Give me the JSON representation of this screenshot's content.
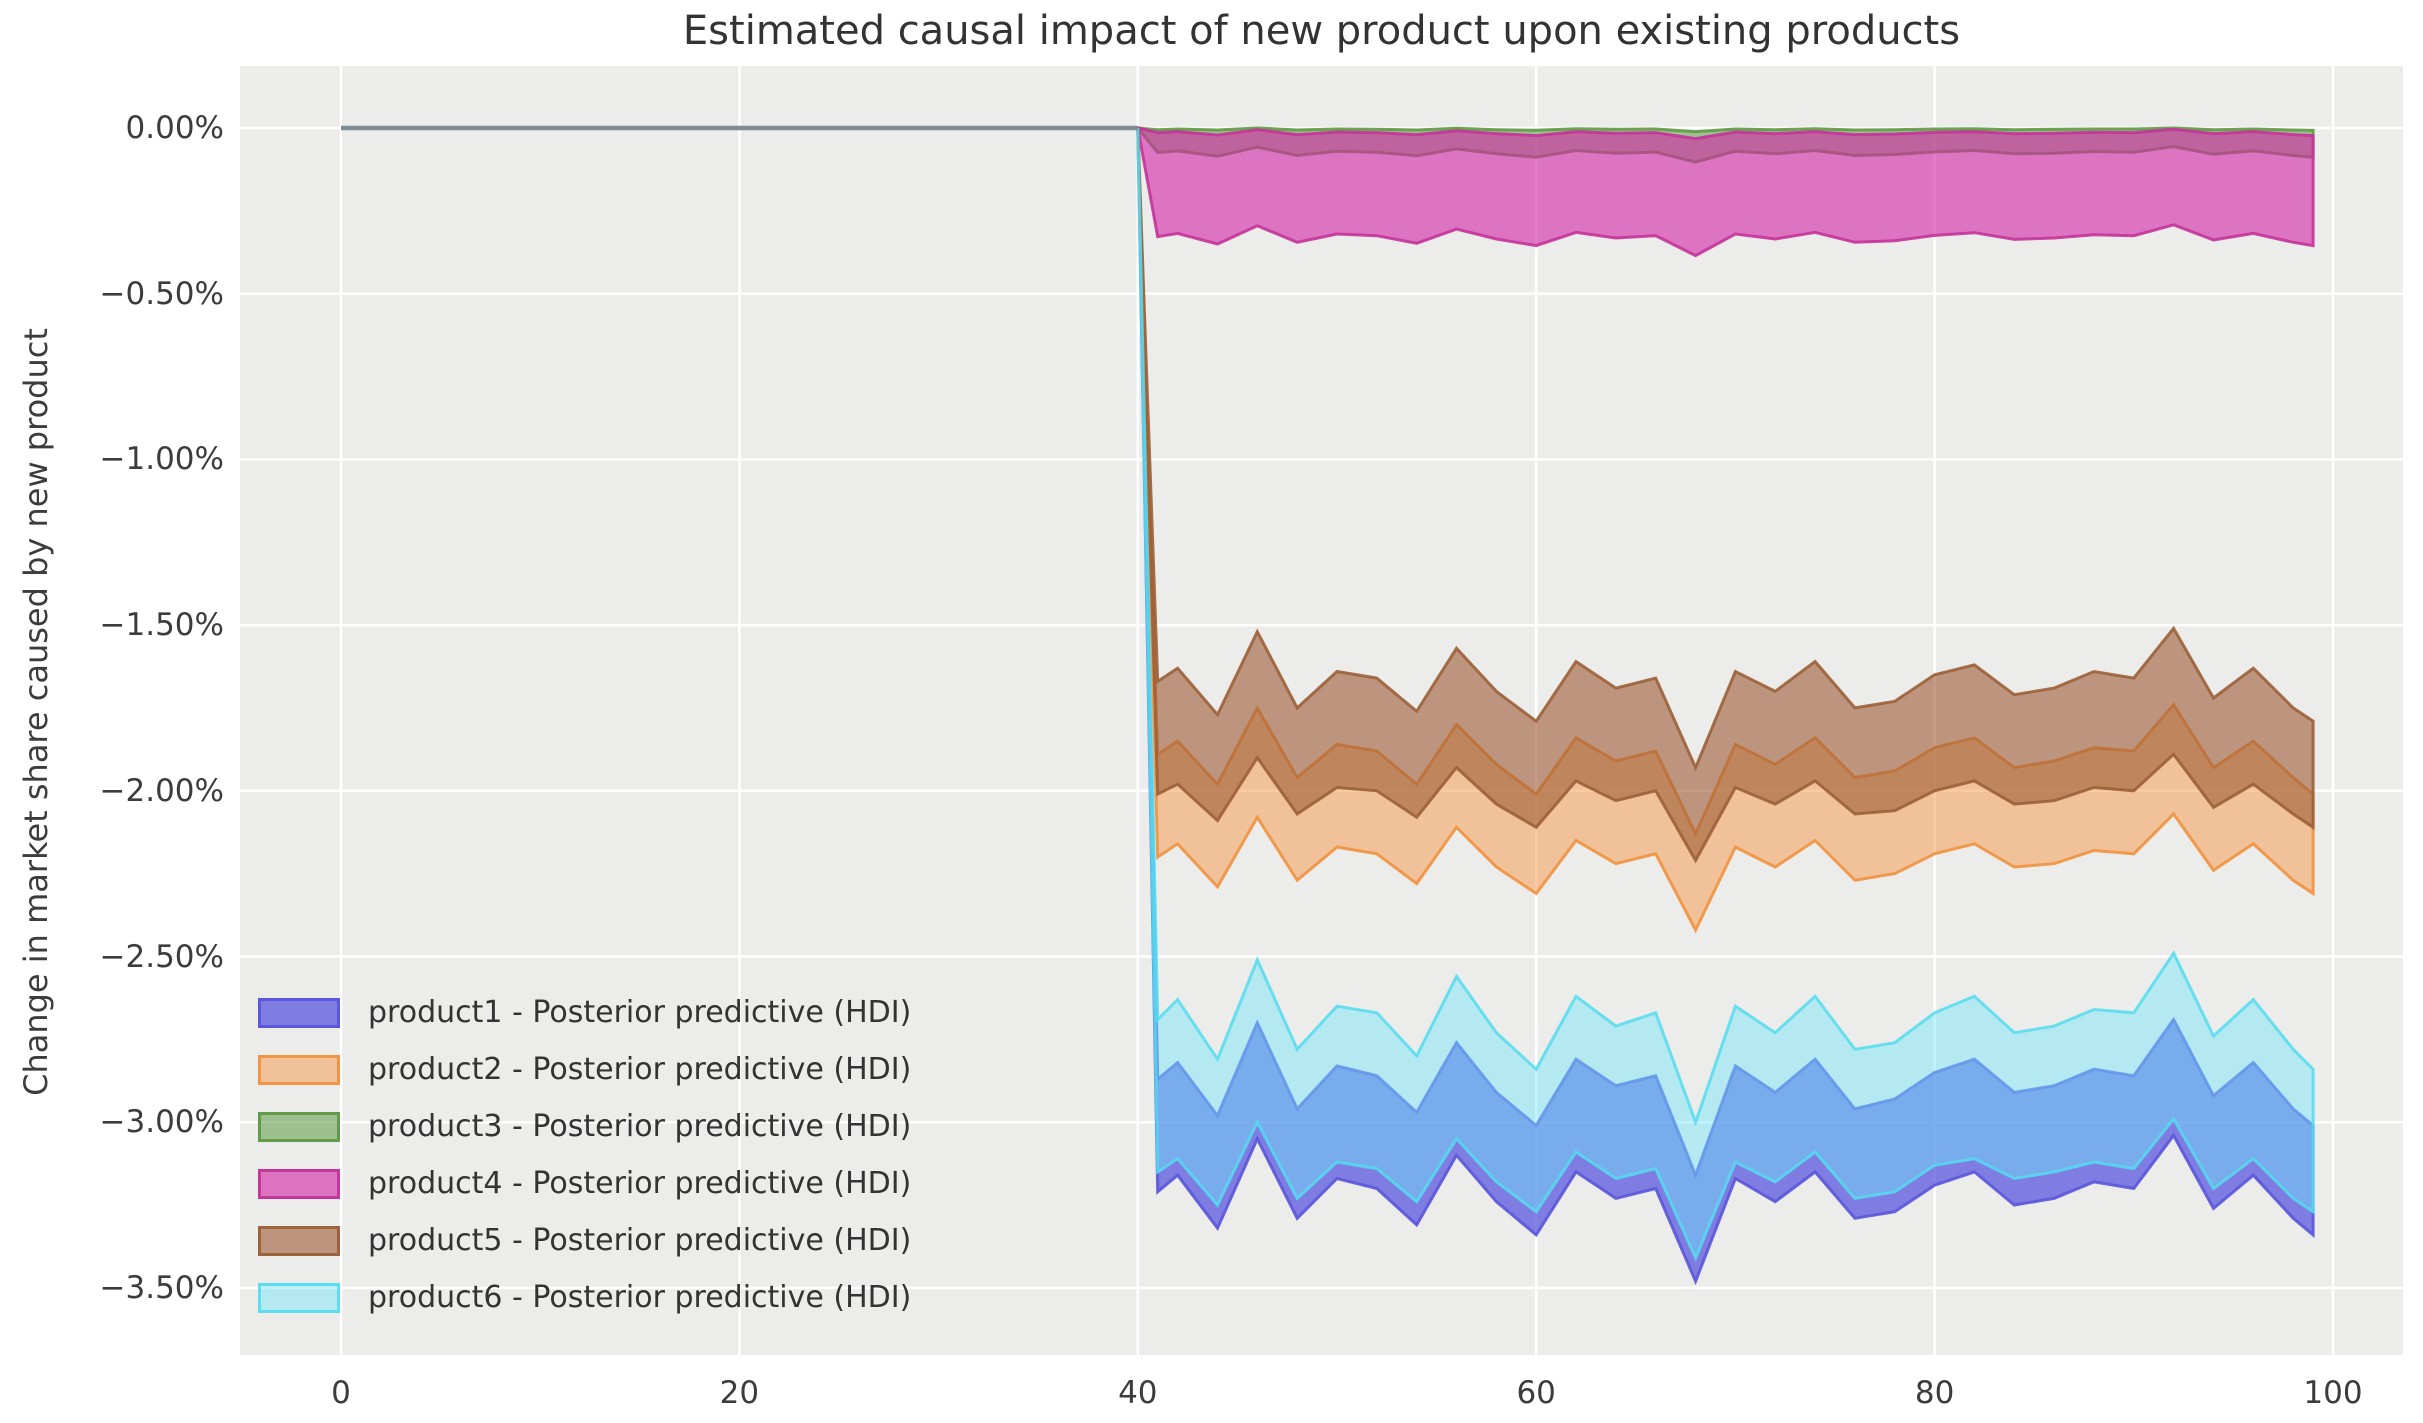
{
  "chart_data": {
    "type": "area",
    "title": "Estimated causal impact of new product upon existing products",
    "ylabel": "Change in market share caused by new product",
    "xlabel": "",
    "grid": true,
    "axes_background": "#ECECEB",
    "gridline_color": "#FFFFFF",
    "tick_color": "#3c3c3c",
    "xlim": [
      -5.1,
      103.6
    ],
    "ylim": [
      -3.7,
      0.187
    ],
    "x_ticks": [
      0,
      20,
      40,
      60,
      80,
      100
    ],
    "x_tick_labels": [
      "0",
      "20",
      "40",
      "60",
      "80",
      "100"
    ],
    "y_ticks": [
      0,
      -0.5,
      -1.0,
      -1.5,
      -2.0,
      -2.5,
      -3.0,
      -3.5
    ],
    "y_tick_labels": [
      "0.00%",
      "−0.50%",
      "−1.00%",
      "−1.50%",
      "−2.00%",
      "−2.50%",
      "−3.00%",
      "−3.50%"
    ],
    "treatment_x": 40,
    "pre_period_line": {
      "x": [
        0,
        40
      ],
      "y": [
        0,
        0
      ],
      "color": "#7D8D95",
      "width": 4.5
    },
    "legend_position": "lower-left",
    "x": [
      40,
      41,
      42,
      44,
      46,
      48,
      50,
      52,
      54,
      56,
      58,
      60,
      62,
      64,
      66,
      68,
      70,
      72,
      74,
      76,
      78,
      80,
      82,
      84,
      86,
      88,
      90,
      92,
      94,
      96,
      98,
      99
    ],
    "series": [
      {
        "name": "product1",
        "label": "product1 - Posterior predictive (HDI)",
        "fill": "#5B58DD",
        "stroke": "#5A55DC",
        "fill_opacity": 0.75,
        "stroke_opacity": 0.9,
        "hi": [
          0,
          -2.87,
          -2.82,
          -2.98,
          -2.7,
          -2.96,
          -2.83,
          -2.86,
          -2.97,
          -2.76,
          -2.91,
          -3.01,
          -2.81,
          -2.89,
          -2.86,
          -3.16,
          -2.83,
          -2.91,
          -2.81,
          -2.96,
          -2.93,
          -2.85,
          -2.81,
          -2.91,
          -2.89,
          -2.84,
          -2.86,
          -2.69,
          -2.92,
          -2.82,
          -2.96,
          -3.01
        ],
        "lo": [
          0,
          -3.21,
          -3.16,
          -3.32,
          -3.05,
          -3.29,
          -3.17,
          -3.2,
          -3.31,
          -3.1,
          -3.24,
          -3.34,
          -3.15,
          -3.23,
          -3.2,
          -3.48,
          -3.17,
          -3.24,
          -3.15,
          -3.29,
          -3.27,
          -3.19,
          -3.15,
          -3.25,
          -3.23,
          -3.18,
          -3.2,
          -3.04,
          -3.26,
          -3.16,
          -3.29,
          -3.34
        ]
      },
      {
        "name": "product2",
        "label": "product2 - Posterior predictive (HDI)",
        "fill": "#F5A155",
        "stroke": "#F0923F",
        "fill_opacity": 0.55,
        "stroke_opacity": 0.9,
        "hi": [
          0,
          -1.89,
          -1.85,
          -1.98,
          -1.75,
          -1.96,
          -1.86,
          -1.88,
          -1.98,
          -1.8,
          -1.92,
          -2.01,
          -1.84,
          -1.91,
          -1.88,
          -2.13,
          -1.86,
          -1.92,
          -1.84,
          -1.96,
          -1.94,
          -1.87,
          -1.84,
          -1.93,
          -1.91,
          -1.87,
          -1.88,
          -1.74,
          -1.93,
          -1.85,
          -1.96,
          -2.01
        ],
        "lo": [
          0,
          -2.2,
          -2.16,
          -2.29,
          -2.08,
          -2.27,
          -2.17,
          -2.19,
          -2.28,
          -2.11,
          -2.23,
          -2.31,
          -2.15,
          -2.22,
          -2.19,
          -2.42,
          -2.17,
          -2.23,
          -2.15,
          -2.27,
          -2.25,
          -2.19,
          -2.16,
          -2.23,
          -2.22,
          -2.18,
          -2.19,
          -2.07,
          -2.24,
          -2.16,
          -2.27,
          -2.31
        ]
      },
      {
        "name": "product3",
        "label": "product3 - Posterior predictive (HDI)",
        "fill": "#6BA353",
        "stroke": "#5F9A44",
        "fill_opacity": 0.6,
        "stroke_opacity": 0.9,
        "hi": [
          0,
          -0.005,
          -0.003,
          -0.006,
          0.0,
          -0.006,
          -0.003,
          -0.004,
          -0.006,
          -0.001,
          -0.005,
          -0.007,
          -0.002,
          -0.004,
          -0.003,
          -0.011,
          -0.003,
          -0.005,
          -0.002,
          -0.006,
          -0.005,
          -0.003,
          -0.002,
          -0.005,
          -0.004,
          -0.003,
          -0.003,
          0.0,
          -0.005,
          -0.003,
          -0.006,
          -0.007
        ],
        "lo": [
          0,
          -0.074,
          -0.069,
          -0.085,
          -0.058,
          -0.083,
          -0.07,
          -0.073,
          -0.084,
          -0.063,
          -0.078,
          -0.088,
          -0.068,
          -0.076,
          -0.073,
          -0.103,
          -0.07,
          -0.078,
          -0.068,
          -0.083,
          -0.08,
          -0.072,
          -0.068,
          -0.078,
          -0.076,
          -0.071,
          -0.073,
          -0.056,
          -0.079,
          -0.069,
          -0.083,
          -0.088
        ]
      },
      {
        "name": "product4",
        "label": "product4 - Posterior predictive (HDI)",
        "fill": "#D324A6",
        "stroke": "#C43399",
        "fill_opacity": 0.6,
        "stroke_opacity": 0.9,
        "hi": [
          0,
          -0.014,
          -0.011,
          -0.021,
          -0.005,
          -0.02,
          -0.012,
          -0.014,
          -0.02,
          -0.008,
          -0.017,
          -0.023,
          -0.011,
          -0.016,
          -0.014,
          -0.032,
          -0.012,
          -0.017,
          -0.011,
          -0.02,
          -0.018,
          -0.013,
          -0.011,
          -0.017,
          -0.016,
          -0.013,
          -0.014,
          -0.004,
          -0.017,
          -0.011,
          -0.02,
          -0.023
        ],
        "lo": [
          0,
          -0.328,
          -0.318,
          -0.35,
          -0.295,
          -0.345,
          -0.32,
          -0.325,
          -0.348,
          -0.305,
          -0.335,
          -0.355,
          -0.315,
          -0.332,
          -0.325,
          -0.385,
          -0.32,
          -0.335,
          -0.315,
          -0.345,
          -0.34,
          -0.324,
          -0.316,
          -0.336,
          -0.332,
          -0.322,
          -0.325,
          -0.292,
          -0.338,
          -0.318,
          -0.345,
          -0.355
        ]
      },
      {
        "name": "product5",
        "label": "product5 - Posterior predictive (HDI)",
        "fill": "#9F5B35",
        "stroke": "#9B6038",
        "fill_opacity": 0.6,
        "stroke_opacity": 0.9,
        "hi": [
          0,
          -1.67,
          -1.63,
          -1.77,
          -1.52,
          -1.75,
          -1.64,
          -1.66,
          -1.76,
          -1.57,
          -1.7,
          -1.79,
          -1.61,
          -1.69,
          -1.66,
          -1.93,
          -1.64,
          -1.7,
          -1.61,
          -1.75,
          -1.73,
          -1.65,
          -1.62,
          -1.71,
          -1.69,
          -1.64,
          -1.66,
          -1.51,
          -1.72,
          -1.63,
          -1.75,
          -1.79
        ],
        "lo": [
          0,
          -2.01,
          -1.98,
          -2.09,
          -1.9,
          -2.07,
          -1.99,
          -2.0,
          -2.08,
          -1.93,
          -2.04,
          -2.11,
          -1.97,
          -2.03,
          -2.0,
          -2.21,
          -1.99,
          -2.04,
          -1.97,
          -2.07,
          -2.06,
          -2.0,
          -1.97,
          -2.04,
          -2.03,
          -1.99,
          -2.0,
          -1.89,
          -2.05,
          -1.98,
          -2.07,
          -2.11
        ]
      },
      {
        "name": "product6",
        "label": "product6 - Posterior predictive (HDI)",
        "fill": "#70E7FB",
        "stroke": "#55DCEF",
        "fill_opacity": 0.45,
        "stroke_opacity": 0.85,
        "hi": [
          0,
          -2.69,
          -2.63,
          -2.81,
          -2.51,
          -2.78,
          -2.65,
          -2.67,
          -2.8,
          -2.56,
          -2.73,
          -2.84,
          -2.62,
          -2.71,
          -2.67,
          -3.0,
          -2.65,
          -2.73,
          -2.62,
          -2.78,
          -2.76,
          -2.67,
          -2.62,
          -2.73,
          -2.71,
          -2.66,
          -2.67,
          -2.49,
          -2.74,
          -2.63,
          -2.78,
          -2.84
        ],
        "lo": [
          0,
          -3.15,
          -3.11,
          -3.25,
          -3.0,
          -3.23,
          -3.12,
          -3.14,
          -3.24,
          -3.05,
          -3.18,
          -3.27,
          -3.09,
          -3.17,
          -3.14,
          -3.41,
          -3.12,
          -3.18,
          -3.09,
          -3.23,
          -3.21,
          -3.13,
          -3.11,
          -3.17,
          -3.15,
          -3.12,
          -3.14,
          -2.99,
          -3.2,
          -3.11,
          -3.23,
          -3.27
        ]
      }
    ]
  }
}
